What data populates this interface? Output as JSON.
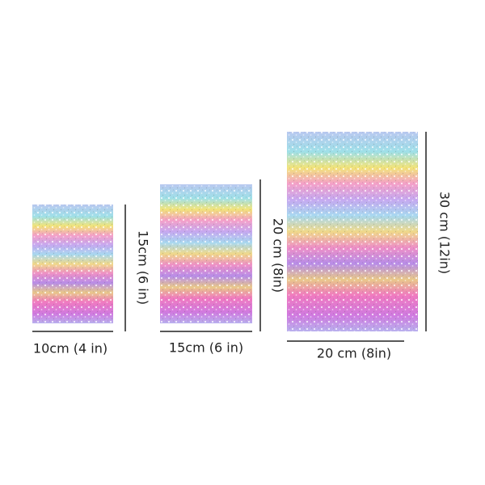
{
  "sheets": [
    {
      "width_label": "10cm (4 in)",
      "height_label": "15cm (6 in)"
    },
    {
      "width_label": "15cm (6 in)",
      "height_label": "20 cm (8in)"
    },
    {
      "width_label": "20 cm (8in)",
      "height_label": "30 cm (12in)"
    }
  ]
}
